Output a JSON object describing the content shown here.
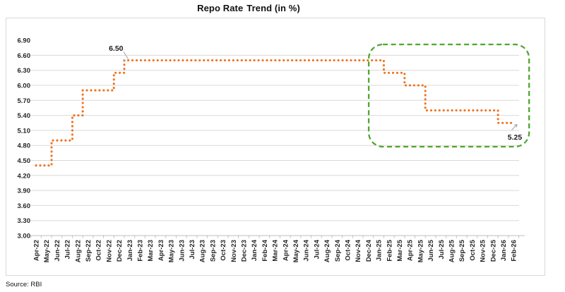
{
  "title": {
    "main": "Repo Rate",
    "suffix": "Trend (in %)"
  },
  "source_note": "Source: RBI",
  "colors": {
    "line": "#EE7423",
    "highlight_box": "#4EA72E",
    "gridline": "#d9d9d9",
    "axis": "#bfbfbf",
    "annotation_arrow": "#a6a6a6",
    "label_text": "#262626"
  },
  "chart_data": {
    "type": "line",
    "title": "Repo Rate Trend (in %)",
    "unit": "%",
    "line_style": "dotted",
    "grid": "horizontal",
    "legend": "none",
    "ylim": [
      3.0,
      6.9
    ],
    "ytick_interval": 0.3,
    "ytick_labels": [
      "6.90",
      "6.60",
      "6.30",
      "6.00",
      "5.70",
      "5.40",
      "5.10",
      "4.80",
      "4.50",
      "4.20",
      "3.90",
      "3.60",
      "3.30",
      "3.00"
    ],
    "x": [
      "Apr-22",
      "May-22",
      "Jun-22",
      "Jul-22",
      "Aug-22",
      "Sep-22",
      "Oct-22",
      "Nov-22",
      "Dec-22",
      "Jan-23",
      "Feb-23",
      "Mar-23",
      "Apr-23",
      "May-23",
      "Jun-23",
      "Jul-23",
      "Aug-23",
      "Sep-23",
      "Oct-23",
      "Nov-23",
      "Dec-23",
      "Jan-24",
      "Feb-24",
      "Mar-24",
      "Apr-24",
      "May-24",
      "Jun-24",
      "Jul-24",
      "Aug-24",
      "Sep-24",
      "Oct-24",
      "Nov-24",
      "Dec-24",
      "Jan-25",
      "Feb-25",
      "Mar-25",
      "Apr-25",
      "May-25",
      "Jun-25",
      "Jul-25",
      "Aug-25",
      "Sep-25",
      "Oct-25",
      "Nov-25",
      "Dec-25",
      "Jan-26",
      "Feb-26"
    ],
    "values": [
      4.4,
      4.4,
      4.9,
      4.9,
      5.4,
      5.9,
      5.9,
      5.9,
      6.25,
      6.5,
      6.5,
      6.5,
      6.5,
      6.5,
      6.5,
      6.5,
      6.5,
      6.5,
      6.5,
      6.5,
      6.5,
      6.5,
      6.5,
      6.5,
      6.5,
      6.5,
      6.5,
      6.5,
      6.5,
      6.5,
      6.5,
      6.5,
      6.5,
      6.5,
      6.25,
      6.25,
      6.0,
      6.0,
      5.5,
      5.5,
      5.5,
      5.5,
      5.5,
      5.5,
      5.5,
      5.25,
      5.25
    ],
    "annotations": [
      {
        "text": "6.50",
        "attach_month": "Jan-23",
        "value": 6.5
      },
      {
        "text": "5.25",
        "attach_month": "Feb-26",
        "value": 5.25
      }
    ],
    "highlight_region": {
      "start_month": "Jan-25",
      "end_month": "Feb-26",
      "style": "dashed-rounded-rect",
      "color": "#4EA72E"
    }
  }
}
